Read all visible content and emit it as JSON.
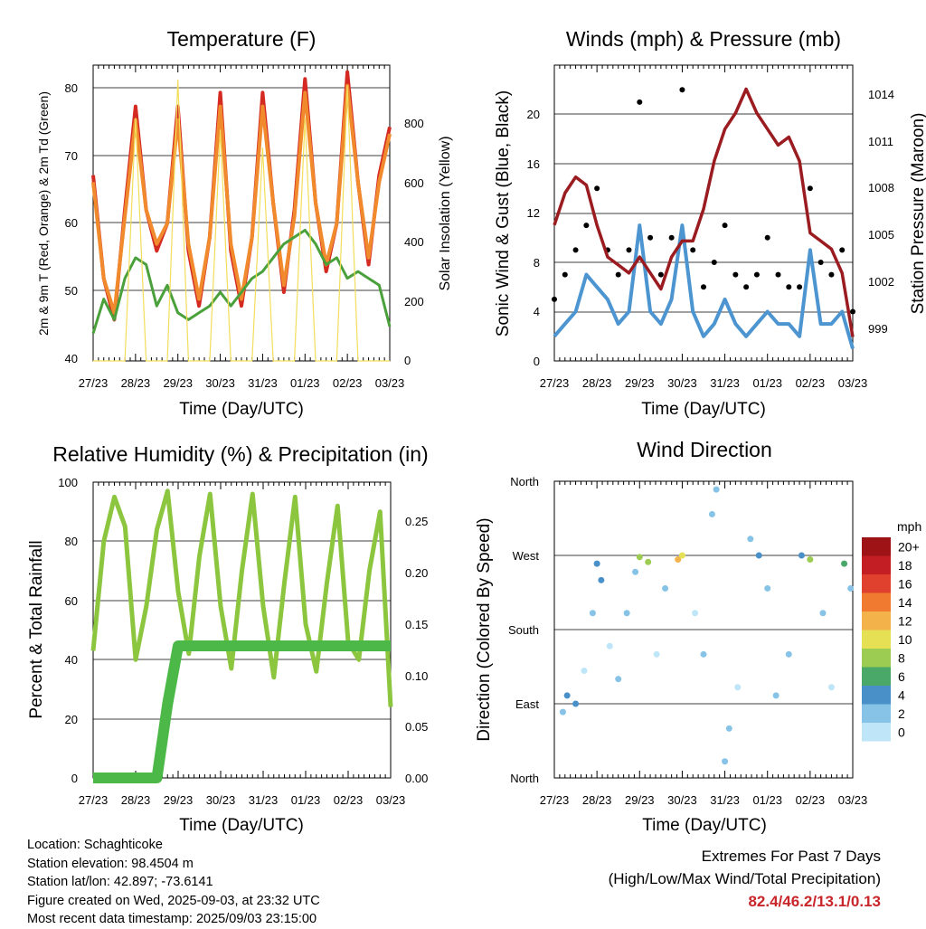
{
  "x_ticks": [
    "27/23",
    "28/23",
    "29/23",
    "30/23",
    "31/23",
    "01/23",
    "02/23",
    "03/23"
  ],
  "panels": {
    "temperature": {
      "title": "Temperature (F)",
      "xlabel": "Time (Day/UTC)",
      "ylabel_left": "2m & 9m T (Red, Orange) & 2m Td (Green)",
      "ylabel_right": "Solar Insolation (Yellow)",
      "yticks_left": [
        "40",
        "50",
        "60",
        "70",
        "80"
      ],
      "yticks_right": [
        "0",
        "200",
        "400",
        "600",
        "800"
      ]
    },
    "winds": {
      "title": "Winds (mph) & Pressure (mb)",
      "xlabel": "Time (Day/UTC)",
      "ylabel_left": "Sonic Wind & Gust (Blue, Black)",
      "ylabel_right": "Station Pressure (Maroon)",
      "yticks_left": [
        "0",
        "4",
        "8",
        "12",
        "16",
        "20"
      ],
      "yticks_right": [
        "999",
        "1002",
        "1005",
        "1008",
        "1011",
        "1014"
      ]
    },
    "humidity": {
      "title": "Relative Humidity (%) & Precipitation (in)",
      "xlabel": "Time (Day/UTC)",
      "ylabel_left": "Percent & Total Rainfall",
      "yticks_left": [
        "0",
        "20",
        "40",
        "60",
        "80",
        "100"
      ],
      "yticks_right": [
        "0.00",
        "0.05",
        "0.10",
        "0.15",
        "0.20",
        "0.25"
      ]
    },
    "direction": {
      "title": "Wind Direction",
      "xlabel": "Time (Day/UTC)",
      "ylabel_left": "Direction (Colored By Speed)",
      "yticks_left": [
        "North",
        "East",
        "South",
        "West",
        "North"
      ],
      "legend_title": "mph",
      "legend_labels": [
        "0",
        "2",
        "4",
        "6",
        "8",
        "10",
        "12",
        "14",
        "16",
        "18",
        "20+"
      ],
      "legend_colors": [
        "#bfe6f8",
        "#86c3e6",
        "#4a90c8",
        "#4aa868",
        "#9ccc52",
        "#e6e055",
        "#f4b24a",
        "#ef7a30",
        "#e0412e",
        "#c31e23",
        "#9e1416"
      ]
    }
  },
  "footer": {
    "location": "Location: Schaghticoke",
    "elevation": "Station elevation: 98.4504 m",
    "latlon": "Station lat/lon: 42.897; -73.6141",
    "created": "Figure created on Wed, 2025-09-03, at 23:32 UTC",
    "latest": "Most recent data timestamp: 2025/09/03 23:15:00",
    "extremes_title": "Extremes For Past 7 Days",
    "extremes_subtitle": "(High/Low/Max Wind/Total Precipitation)",
    "extremes_values": "82.4/46.2/13.1/0.13"
  },
  "chart_data": [
    {
      "type": "line",
      "title": "Temperature (F)",
      "xlabel": "Time (Day/UTC)",
      "x": [
        0,
        0.25,
        0.5,
        0.75,
        1,
        1.25,
        1.5,
        1.75,
        2,
        2.25,
        2.5,
        2.75,
        3,
        3.25,
        3.5,
        3.75,
        4,
        4.25,
        4.5,
        4.75,
        5,
        5.25,
        5.5,
        5.75,
        6,
        6.25,
        6.5,
        6.75,
        7
      ],
      "xlim": [
        0,
        7
      ],
      "ylim": [
        40,
        83
      ],
      "y2lim": [
        0,
        1000
      ],
      "series": [
        {
          "name": "2m T",
          "color": "#d42a22",
          "axis": "left",
          "values": [
            67,
            52,
            46,
            62,
            77,
            62,
            56,
            60,
            77,
            56,
            48,
            58,
            79,
            56,
            48,
            58,
            79,
            63,
            50,
            62,
            81,
            63,
            53,
            60,
            82,
            66,
            54,
            67,
            74
          ]
        },
        {
          "name": "9m T",
          "color": "#f08a2c",
          "axis": "left",
          "values": [
            66,
            52,
            47,
            61,
            75,
            62,
            57,
            60,
            75,
            57,
            49,
            58,
            77,
            57,
            49,
            58,
            77,
            63,
            51,
            61,
            79,
            63,
            54,
            60,
            80,
            66,
            55,
            66,
            73
          ]
        },
        {
          "name": "2m Td",
          "color": "#4aa03a",
          "axis": "left",
          "values": [
            44,
            49,
            46,
            52,
            55,
            54,
            48,
            51,
            47,
            46,
            47,
            48,
            50,
            48,
            50,
            52,
            53,
            55,
            57,
            58,
            59,
            57,
            54,
            55,
            52,
            53,
            52,
            51,
            45
          ]
        },
        {
          "name": "Solar Insolation",
          "color": "#f2de5a",
          "axis": "right",
          "values": [
            0,
            0,
            0,
            0,
            820,
            0,
            0,
            0,
            950,
            0,
            0,
            0,
            780,
            0,
            0,
            0,
            720,
            0,
            0,
            0,
            820,
            0,
            0,
            0,
            930,
            0,
            0,
            0,
            0
          ]
        }
      ]
    },
    {
      "type": "line",
      "title": "Winds (mph) & Pressure (mb)",
      "xlabel": "Time (Day/UTC)",
      "x": [
        0,
        0.25,
        0.5,
        0.75,
        1,
        1.25,
        1.5,
        1.75,
        2,
        2.25,
        2.5,
        2.75,
        3,
        3.25,
        3.5,
        3.75,
        4,
        4.25,
        4.5,
        4.75,
        5,
        5.25,
        5.5,
        5.75,
        6,
        6.25,
        6.5,
        6.75,
        7
      ],
      "xlim": [
        0,
        7
      ],
      "ylim": [
        0,
        24
      ],
      "y2lim": [
        997.5,
        1016
      ],
      "series": [
        {
          "name": "Sonic Wind",
          "color": "#4c95d0",
          "axis": "left",
          "values": [
            2,
            3,
            4,
            7,
            6,
            5,
            3,
            4,
            11,
            4,
            3,
            5,
            11,
            4,
            2,
            3,
            5,
            3,
            2,
            3,
            4,
            3,
            3,
            2,
            9,
            3,
            3,
            4,
            1
          ]
        },
        {
          "name": "Gust",
          "color": "#000000",
          "axis": "left",
          "values": [
            5,
            7,
            9,
            11,
            14,
            9,
            7,
            9,
            21,
            10,
            7,
            10,
            22,
            9,
            6,
            8,
            11,
            7,
            6,
            7,
            10,
            7,
            6,
            6,
            14,
            8,
            7,
            9,
            4
          ]
        },
        {
          "name": "Station Pressure",
          "color": "#9b1c20",
          "axis": "right",
          "values": [
            1006,
            1008,
            1009,
            1008.5,
            1006,
            1004,
            1003.5,
            1003,
            1004,
            1003,
            1002,
            1004,
            1005,
            1005,
            1007,
            1010,
            1012,
            1013,
            1014.5,
            1013,
            1012,
            1011,
            1011.5,
            1010,
            1005.5,
            1005,
            1004.5,
            1003,
            999
          ]
        }
      ]
    },
    {
      "type": "line",
      "title": "Relative Humidity (%) & Precipitation (in)",
      "xlabel": "Time (Day/UTC)",
      "x": [
        0,
        0.25,
        0.5,
        0.75,
        1,
        1.25,
        1.5,
        1.75,
        2,
        2.25,
        2.5,
        2.75,
        3,
        3.25,
        3.5,
        3.75,
        4,
        4.25,
        4.5,
        4.75,
        5,
        5.25,
        5.5,
        5.75,
        6,
        6.25,
        6.5,
        6.75,
        7
      ],
      "xlim": [
        0,
        7
      ],
      "ylim": [
        0,
        100
      ],
      "y2lim": [
        0,
        0.28
      ],
      "series": [
        {
          "name": "Relative Humidity",
          "color": "#8cc63f",
          "axis": "left",
          "values": [
            43,
            80,
            95,
            85,
            40,
            58,
            84,
            97,
            63,
            42,
            75,
            96,
            58,
            37,
            70,
            96,
            58,
            34,
            66,
            95,
            52,
            36,
            66,
            92,
            46,
            40,
            70,
            90,
            24
          ]
        },
        {
          "name": "Total Rainfall",
          "color": "#4cb848",
          "axis": "right",
          "values": [
            0,
            0,
            0,
            0,
            0,
            0,
            0,
            0.07,
            0.125,
            0.125,
            0.125,
            0.125,
            0.125,
            0.125,
            0.125,
            0.125,
            0.125,
            0.125,
            0.125,
            0.125,
            0.125,
            0.125,
            0.125,
            0.125,
            0.125,
            0.125,
            0.125,
            0.125,
            0.125
          ]
        }
      ]
    },
    {
      "type": "scatter",
      "title": "Wind Direction",
      "xlabel": "Time (Day/UTC)",
      "xlim": [
        0,
        7
      ],
      "ylim": [
        0,
        360
      ],
      "colorbar": {
        "label": "mph",
        "levels": [
          0,
          2,
          4,
          6,
          8,
          10,
          12,
          14,
          16,
          18,
          20
        ]
      },
      "points": [
        {
          "x": 0.2,
          "dir": 80,
          "speed": 3
        },
        {
          "x": 0.3,
          "dir": 100,
          "speed": 4
        },
        {
          "x": 0.5,
          "dir": 90,
          "speed": 4
        },
        {
          "x": 0.7,
          "dir": 130,
          "speed": 1
        },
        {
          "x": 0.9,
          "dir": 200,
          "speed": 3
        },
        {
          "x": 1.0,
          "dir": 260,
          "speed": 4
        },
        {
          "x": 1.1,
          "dir": 240,
          "speed": 5
        },
        {
          "x": 1.3,
          "dir": 160,
          "speed": 1
        },
        {
          "x": 1.5,
          "dir": 120,
          "speed": 2
        },
        {
          "x": 1.7,
          "dir": 200,
          "speed": 2
        },
        {
          "x": 1.9,
          "dir": 250,
          "speed": 3
        },
        {
          "x": 2.0,
          "dir": 268,
          "speed": 9
        },
        {
          "x": 2.2,
          "dir": 262,
          "speed": 8
        },
        {
          "x": 2.4,
          "dir": 150,
          "speed": 1
        },
        {
          "x": 2.6,
          "dir": 230,
          "speed": 2
        },
        {
          "x": 2.9,
          "dir": 265,
          "speed": 12
        },
        {
          "x": 3.0,
          "dir": 270,
          "speed": 10
        },
        {
          "x": 3.3,
          "dir": 200,
          "speed": 1
        },
        {
          "x": 3.5,
          "dir": 150,
          "speed": 2
        },
        {
          "x": 3.7,
          "dir": 320,
          "speed": 3
        },
        {
          "x": 3.8,
          "dir": 350,
          "speed": 2
        },
        {
          "x": 4.0,
          "dir": 20,
          "speed": 3
        },
        {
          "x": 4.1,
          "dir": 60,
          "speed": 2
        },
        {
          "x": 4.3,
          "dir": 110,
          "speed": 1
        },
        {
          "x": 4.6,
          "dir": 290,
          "speed": 3
        },
        {
          "x": 4.8,
          "dir": 270,
          "speed": 4
        },
        {
          "x": 5.0,
          "dir": 230,
          "speed": 2
        },
        {
          "x": 5.2,
          "dir": 100,
          "speed": 2
        },
        {
          "x": 5.5,
          "dir": 150,
          "speed": 2
        },
        {
          "x": 5.8,
          "dir": 270,
          "speed": 4
        },
        {
          "x": 6.0,
          "dir": 265,
          "speed": 8
        },
        {
          "x": 6.3,
          "dir": 200,
          "speed": 2
        },
        {
          "x": 6.5,
          "dir": 110,
          "speed": 1
        },
        {
          "x": 6.8,
          "dir": 260,
          "speed": 6
        },
        {
          "x": 6.95,
          "dir": 230,
          "speed": 2
        }
      ]
    }
  ]
}
